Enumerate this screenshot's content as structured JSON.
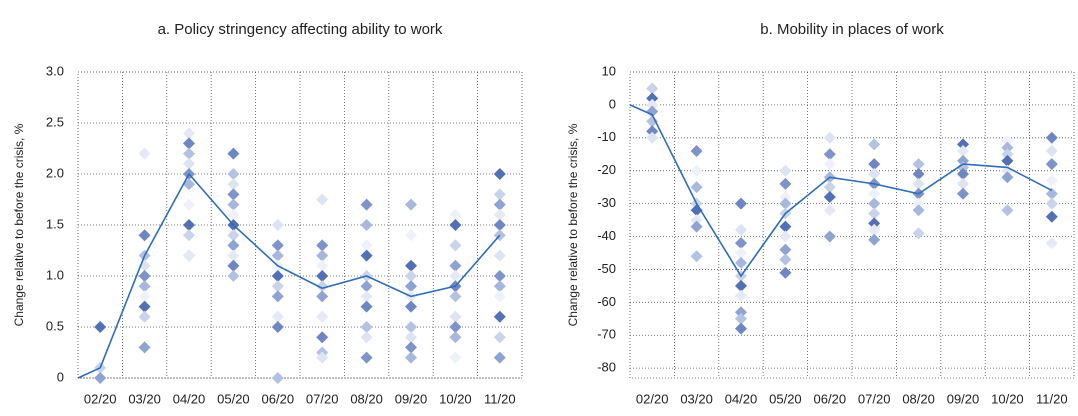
{
  "chart_data": [
    {
      "type": "line",
      "title": "a. Policy stringency affecting ability to work",
      "y_label": "Change relative to before the crisis, %",
      "categories": [
        null,
        "02/20",
        "03/20",
        "04/20",
        "05/20",
        "06/20",
        "07/20",
        "08/20",
        "09/20",
        "10/20",
        "11/20"
      ],
      "values": [
        0,
        0.1,
        1.2,
        2.0,
        1.5,
        1.1,
        0.88,
        1.0,
        0.8,
        0.9,
        1.4
      ],
      "color": "#2f6db5",
      "points": [
        [],
        [
          0.5,
          0.1,
          0.0
        ],
        [
          2.2,
          1.4,
          1.2,
          1.1,
          1.0,
          0.9,
          0.8,
          0.7,
          0.6,
          0.3
        ],
        [
          2.4,
          2.3,
          2.2,
          2.1,
          2.0,
          1.9,
          1.7,
          1.5,
          1.4,
          1.2,
          1.2
        ],
        [
          2.2,
          2.0,
          1.9,
          1.8,
          1.7,
          1.6,
          1.5,
          1.4,
          1.3,
          1.2,
          1.1,
          1.0
        ],
        [
          1.5,
          1.3,
          1.2,
          1.1,
          1.0,
          0.9,
          0.8,
          0.6,
          0.5,
          0.0
        ],
        [
          1.75,
          1.3,
          1.2,
          1.1,
          1.0,
          0.9,
          0.8,
          0.6,
          0.4,
          0.25,
          0.2
        ],
        [
          1.7,
          1.5,
          1.3,
          1.2,
          1.0,
          0.9,
          0.8,
          0.7,
          0.5,
          0.4,
          0.2
        ],
        [
          1.7,
          1.4,
          1.1,
          1.0,
          0.9,
          0.8,
          0.7,
          0.5,
          0.4,
          0.3,
          0.2
        ],
        [
          1.6,
          1.5,
          1.3,
          1.1,
          1.0,
          0.9,
          0.8,
          0.6,
          0.5,
          0.4,
          0.2
        ],
        [
          2.0,
          1.8,
          1.7,
          1.6,
          1.5,
          1.4,
          1.2,
          1.0,
          0.9,
          0.8,
          0.6,
          0.4,
          0.2
        ]
      ],
      "point_colors": [
        "#5470b4",
        "#c9d3ea",
        "#8fa3d2",
        "#e4e9f5",
        "#6e86c2",
        "#b3c1e2",
        "#dde3f2",
        "#7d93c9",
        "#a7b7dd",
        "#eef1f9"
      ],
      "ylim": [
        0,
        3
      ],
      "yticks": [
        0,
        0.5,
        {
          "value": 1,
          "label": "1.0"
        },
        1.5,
        {
          "value": 2,
          "label": "2.0"
        },
        2.5,
        {
          "value": 3,
          "label": "3.0"
        }
      ],
      "grid": true
    },
    {
      "type": "line",
      "title": "b. Mobility in places of work",
      "y_label": "Change relative to before the crisis, %",
      "categories": [
        null,
        "02/20",
        "03/20",
        "04/20",
        "05/20",
        "06/20",
        "07/20",
        "08/20",
        "09/20",
        "10/20",
        "11/20"
      ],
      "values": [
        0,
        -3,
        -30,
        -52,
        -33,
        -22,
        -24,
        -27,
        -18,
        -19,
        -26
      ],
      "color": "#2f6db5",
      "points": [
        [],
        [
          5,
          2,
          0,
          -2,
          -5,
          -8,
          -10
        ],
        [
          -14,
          -20,
          -25,
          -30,
          -32,
          -35,
          -37,
          -46
        ],
        [
          -30,
          -38,
          -42,
          -45,
          -48,
          -52,
          -55,
          -58,
          -63,
          -65,
          -68
        ],
        [
          -20,
          -24,
          -28,
          -30,
          -33,
          -37,
          -40,
          -44,
          -47,
          -51
        ],
        [
          -10,
          -15,
          -18,
          -22,
          -25,
          -28,
          -32,
          -40
        ],
        [
          -12,
          -18,
          -21,
          -24,
          -27,
          -30,
          -33,
          -36,
          -38,
          -41
        ],
        [
          -18,
          -21,
          -24,
          -27,
          -30,
          -32,
          -39
        ],
        [
          -12,
          -14,
          -17,
          -19,
          -21,
          -24,
          -27
        ],
        [
          -11,
          -13,
          -15,
          -17,
          -20,
          -22,
          -32
        ],
        [
          -10,
          -14,
          -18,
          -23,
          -27,
          -30,
          -34,
          -42
        ]
      ],
      "point_colors": [
        "#c9d3ea",
        "#5470b4",
        "#e4e9f5",
        "#8fa3d2",
        "#b3c1e2",
        "#6e86c2",
        "#dde3f2",
        "#7d93c9",
        "#eef1f9",
        "#a7b7dd"
      ],
      "ylim": [
        -83,
        10
      ],
      "yticks": [
        -80,
        -70,
        -60,
        -50,
        -40,
        -30,
        -20,
        -10,
        0,
        10
      ],
      "grid": true
    }
  ]
}
